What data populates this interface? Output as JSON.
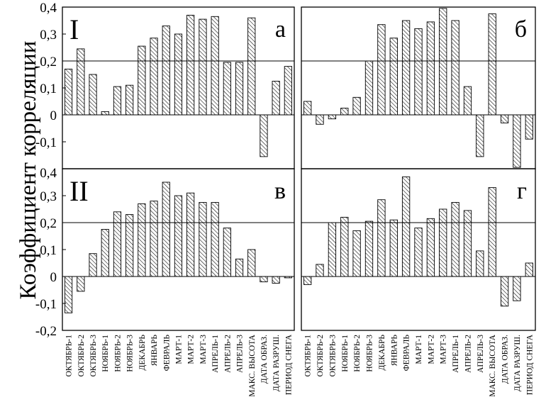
{
  "chart_data": {
    "type": "bar",
    "ylabel": "Коэффициент корреляции",
    "y_ticks": [
      "0,4",
      "0,3",
      "0,2",
      "0,1",
      "0",
      "-0,1",
      "-0,2"
    ],
    "ylim_top": [
      -0.2,
      0.4
    ],
    "ylim_bottom": [
      -0.2,
      0.4
    ],
    "reference_line": 0.2,
    "categories": [
      "ОКТЯБРЬ-1",
      "ОКТЯБРЬ-2",
      "ОКТЯБРЬ-3",
      "НОЯБРЬ-1",
      "НОЯБРЬ-2",
      "НОЯБРЬ-3",
      "ДЕКАБРЬ",
      "ЯНВАРЬ",
      "ФЕВРАЛЬ",
      "МАРТ-1",
      "МАРТ-2",
      "МАРТ-3",
      "АПРЕЛЬ-1",
      "АПРЕЛЬ-2",
      "АПРЕЛЬ-3",
      "МАКС. ВЫСОТА",
      "ДАТА ОБРАЗ.",
      "ДАТА РАЗРУШ.",
      "ПЕРИОД СНЕГА"
    ],
    "panels": [
      {
        "row_label": "I",
        "letter": "а",
        "values": [
          0.17,
          0.245,
          0.15,
          0.012,
          0.105,
          0.11,
          0.255,
          0.285,
          0.33,
          0.3,
          0.37,
          0.355,
          0.365,
          0.195,
          0.195,
          0.36,
          -0.155,
          0.125,
          0.18
        ]
      },
      {
        "row_label": "",
        "letter": "б",
        "values": [
          0.05,
          -0.035,
          -0.015,
          0.025,
          0.065,
          0.2,
          0.335,
          0.285,
          0.35,
          0.32,
          0.345,
          0.395,
          0.35,
          0.105,
          -0.155,
          0.375,
          -0.03,
          -0.195,
          -0.09
        ]
      },
      {
        "row_label": "II",
        "letter": "в",
        "values": [
          -0.135,
          -0.055,
          0.085,
          0.175,
          0.24,
          0.23,
          0.27,
          0.28,
          0.35,
          0.3,
          0.31,
          0.275,
          0.275,
          0.18,
          0.065,
          0.1,
          -0.02,
          -0.025,
          -0.005
        ]
      },
      {
        "row_label": "",
        "letter": "г",
        "values": [
          -0.03,
          0.045,
          0.2,
          0.22,
          0.17,
          0.205,
          0.285,
          0.21,
          0.37,
          0.18,
          0.215,
          0.25,
          0.275,
          0.245,
          0.095,
          0.33,
          -0.11,
          -0.09,
          0.05
        ]
      }
    ]
  }
}
